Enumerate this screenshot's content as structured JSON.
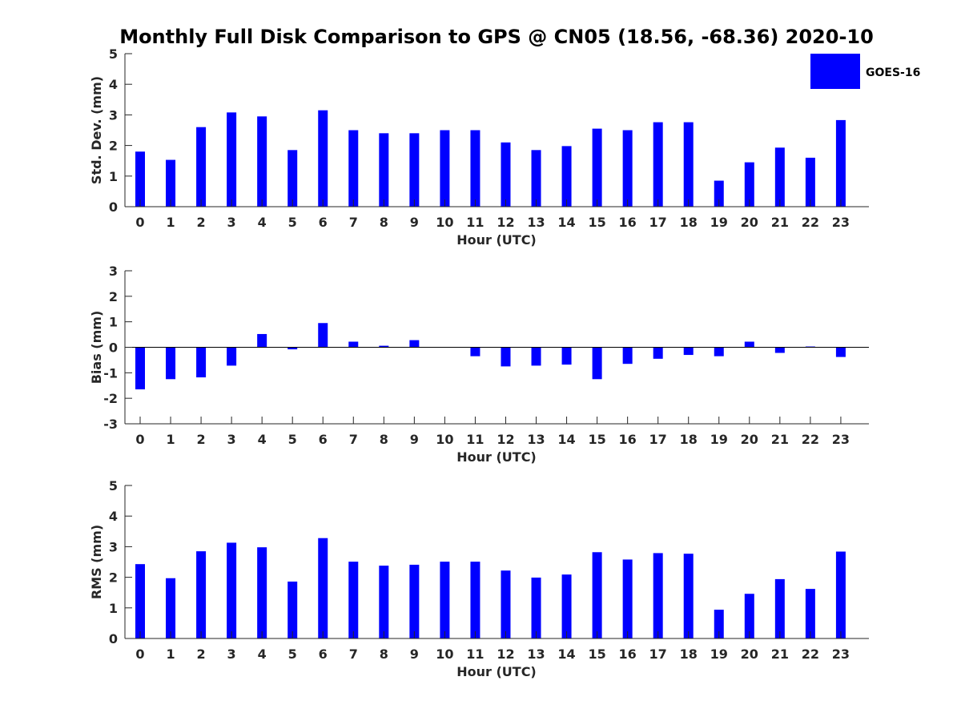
{
  "title": "Monthly Full Disk Comparison to GPS @ CN05 (18.56, -68.36) 2020-10",
  "colors": {
    "bar": "#0000ff",
    "axis": "#262626"
  },
  "legend": {
    "label": "GOES-16"
  },
  "chart_data": [
    {
      "type": "bar",
      "categories": [
        "0",
        "1",
        "2",
        "3",
        "4",
        "5",
        "6",
        "7",
        "8",
        "9",
        "10",
        "11",
        "12",
        "13",
        "14",
        "15",
        "16",
        "17",
        "18",
        "19",
        "20",
        "21",
        "22",
        "23"
      ],
      "series": [
        {
          "name": "GOES-16",
          "values": [
            1.8,
            1.53,
            2.6,
            3.08,
            2.95,
            1.85,
            3.15,
            2.5,
            2.4,
            2.4,
            2.5,
            2.5,
            2.1,
            1.85,
            1.98,
            2.55,
            2.5,
            2.76,
            2.76,
            0.85,
            1.45,
            1.93,
            1.6,
            2.83
          ]
        }
      ],
      "xlabel": "Hour (UTC)",
      "ylabel": "Std. Dev. (mm)",
      "ylim": [
        0,
        5
      ],
      "yticks": [
        0,
        1,
        2,
        3,
        4,
        5
      ]
    },
    {
      "type": "bar",
      "categories": [
        "0",
        "1",
        "2",
        "3",
        "4",
        "5",
        "6",
        "7",
        "8",
        "9",
        "10",
        "11",
        "12",
        "13",
        "14",
        "15",
        "16",
        "17",
        "18",
        "19",
        "20",
        "21",
        "22",
        "23"
      ],
      "series": [
        {
          "name": "GOES-16",
          "values": [
            -1.65,
            -1.25,
            -1.18,
            -0.72,
            0.52,
            -0.08,
            0.95,
            0.22,
            0.06,
            0.28,
            0.0,
            -0.35,
            -0.75,
            -0.72,
            -0.68,
            -1.25,
            -0.65,
            -0.45,
            -0.3,
            -0.35,
            0.22,
            -0.22,
            0.03,
            -0.38
          ]
        }
      ],
      "xlabel": "Hour (UTC)",
      "ylabel": "Bias (mm)",
      "ylim": [
        -3,
        3
      ],
      "yticks": [
        -3,
        -2,
        -1,
        0,
        1,
        2,
        3
      ]
    },
    {
      "type": "bar",
      "categories": [
        "0",
        "1",
        "2",
        "3",
        "4",
        "5",
        "6",
        "7",
        "8",
        "9",
        "10",
        "11",
        "12",
        "13",
        "14",
        "15",
        "16",
        "17",
        "18",
        "19",
        "20",
        "21",
        "22",
        "23"
      ],
      "series": [
        {
          "name": "GOES-16",
          "values": [
            2.43,
            1.97,
            2.85,
            3.13,
            2.98,
            1.86,
            3.28,
            2.51,
            2.38,
            2.41,
            2.51,
            2.51,
            2.22,
            1.99,
            2.09,
            2.82,
            2.58,
            2.79,
            2.77,
            0.94,
            1.46,
            1.94,
            1.62,
            2.84
          ]
        }
      ],
      "xlabel": "Hour (UTC)",
      "ylabel": "RMS (mm)",
      "ylim": [
        0,
        5
      ],
      "yticks": [
        0,
        1,
        2,
        3,
        4,
        5
      ]
    }
  ]
}
